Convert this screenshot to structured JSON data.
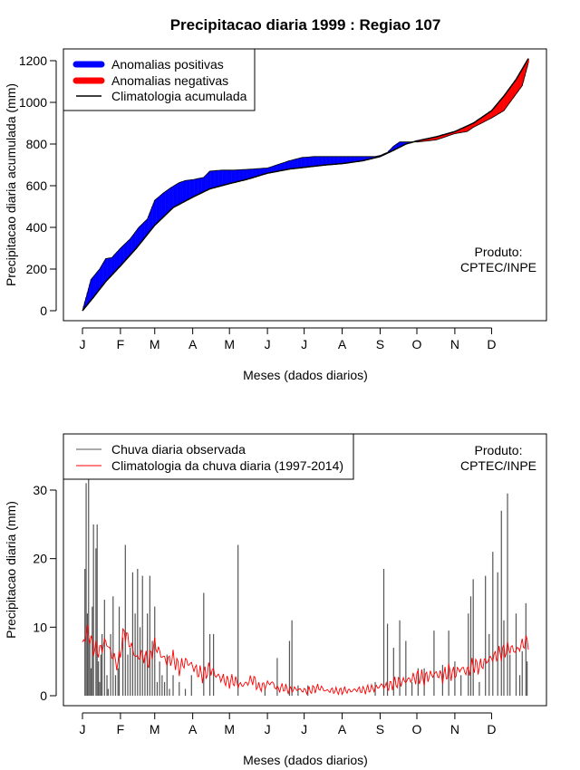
{
  "chart_data": [
    {
      "type": "area",
      "title": "Precipitacao diaria 1999 : Regiao 107",
      "xlabel": "Meses (dados diarios)",
      "ylabel": "Precipitacao diaria acumulada (mm)",
      "xlim": [
        1,
        365
      ],
      "ylim": [
        0,
        1200
      ],
      "yticks": [
        0,
        200,
        400,
        600,
        800,
        1000,
        1200
      ],
      "month_labels": [
        "J",
        "F",
        "M",
        "A",
        "M",
        "J",
        "J",
        "A",
        "S",
        "O",
        "N",
        "D"
      ],
      "month_days": [
        1,
        32,
        60,
        91,
        121,
        152,
        182,
        213,
        244,
        274,
        305,
        335
      ],
      "legend": {
        "positive": "Anomalias positivas",
        "negative": "Anomalias negativas",
        "climatology": "Climatologia acumulada"
      },
      "annotation": [
        "Produto:",
        "CPTEC/INPE"
      ],
      "colors": {
        "positive": "#0000ff",
        "negative": "#ff0000",
        "line": "#000000"
      },
      "climatology_accumulated": {
        "day": [
          1,
          10,
          20,
          32,
          45,
          60,
          75,
          91,
          105,
          121,
          135,
          152,
          170,
          182,
          200,
          213,
          230,
          244,
          255,
          265,
          274,
          290,
          305,
          320,
          335,
          345,
          355,
          365
        ],
        "value": [
          0,
          65,
          140,
          215,
          300,
          410,
          495,
          545,
          585,
          610,
          630,
          660,
          680,
          688,
          700,
          706,
          720,
          740,
          770,
          800,
          815,
          835,
          860,
          900,
          960,
          1030,
          1110,
          1210
        ]
      },
      "observed_accumulated": {
        "day": [
          1,
          8,
          15,
          20,
          25,
          32,
          40,
          47,
          54,
          60,
          67,
          73,
          80,
          85,
          92,
          100,
          105,
          115,
          125,
          140,
          152,
          170,
          180,
          190,
          200,
          220,
          240,
          244,
          250,
          255,
          260,
          275,
          290,
          305,
          315,
          320,
          330,
          335,
          345,
          350,
          360,
          365
        ],
        "value": [
          0,
          150,
          200,
          250,
          255,
          300,
          345,
          400,
          440,
          530,
          565,
          590,
          615,
          625,
          630,
          640,
          670,
          675,
          675,
          680,
          685,
          720,
          735,
          740,
          740,
          740,
          740,
          745,
          760,
          790,
          810,
          810,
          820,
          850,
          860,
          880,
          910,
          925,
          960,
          1000,
          1080,
          1190
        ]
      }
    },
    {
      "type": "bar",
      "xlabel": "Meses (dados diarios)",
      "ylabel": "Precipitacao diaria (mm)",
      "xlim": [
        1,
        365
      ],
      "ylim": [
        0,
        35
      ],
      "yticks": [
        0,
        10,
        20,
        30
      ],
      "month_labels": [
        "J",
        "F",
        "M",
        "A",
        "M",
        "J",
        "J",
        "A",
        "S",
        "O",
        "N",
        "D"
      ],
      "month_days": [
        1,
        32,
        60,
        91,
        121,
        152,
        182,
        213,
        244,
        274,
        305,
        335
      ],
      "legend": {
        "observed": "Chuva diaria observada",
        "climatology": "Climatologia da chuva diaria (1997-2014)"
      },
      "annotation": [
        "Produto:",
        "CPTEC/INPE"
      ],
      "colors": {
        "observed": "#555555",
        "climatology": "#ff0000"
      },
      "observed_daily_spikes": {
        "day": [
          3,
          4,
          5,
          6,
          7,
          8,
          9,
          10,
          12,
          13,
          14,
          15,
          16,
          17,
          19,
          21,
          22,
          24,
          26,
          28,
          30,
          31,
          34,
          36,
          38,
          40,
          42,
          44,
          46,
          48,
          50,
          52,
          54,
          56,
          58,
          60,
          62,
          64,
          66,
          68,
          70,
          72,
          75,
          80,
          85,
          90,
          100,
          105,
          108,
          128,
          150,
          160,
          170,
          172,
          177,
          185,
          240,
          247,
          250,
          255,
          260,
          265,
          270,
          275,
          280,
          288,
          295,
          300,
          305,
          310,
          316,
          318,
          320,
          325,
          330,
          333,
          336,
          340,
          343,
          345,
          348,
          350,
          355,
          358,
          360,
          363,
          364
        ],
        "value": [
          18.5,
          31,
          12,
          34,
          8,
          4,
          13,
          25,
          21.5,
          25,
          5,
          2,
          6,
          9,
          14,
          3,
          1,
          9,
          14.5,
          3,
          4,
          13,
          8.5,
          22,
          6,
          7,
          18,
          12,
          18.5,
          10,
          17.5,
          6,
          12,
          17.5,
          8,
          13,
          2,
          5,
          3,
          2,
          6,
          1,
          3,
          2,
          1,
          3,
          15,
          9,
          9,
          22,
          1,
          5.5,
          8,
          11,
          1.5,
          1.5,
          2,
          18.5,
          10.5,
          7,
          11,
          8,
          2,
          4,
          4,
          9.5,
          4.5,
          9.5,
          5,
          3,
          12,
          14.5,
          17,
          2,
          17.5,
          9,
          21,
          18,
          27,
          11,
          29.5,
          6,
          12,
          3,
          6.5,
          13.5,
          5
        ]
      },
      "climatology_daily": {
        "day": [
          1,
          5,
          10,
          15,
          20,
          25,
          30,
          35,
          40,
          45,
          50,
          55,
          60,
          65,
          70,
          75,
          80,
          85,
          90,
          95,
          100,
          105,
          110,
          115,
          120,
          125,
          130,
          135,
          140,
          145,
          150,
          155,
          160,
          165,
          170,
          175,
          180,
          185,
          190,
          195,
          200,
          205,
          210,
          215,
          220,
          225,
          230,
          235,
          240,
          245,
          250,
          255,
          260,
          265,
          270,
          275,
          280,
          285,
          290,
          295,
          300,
          305,
          310,
          315,
          320,
          325,
          330,
          335,
          340,
          345,
          350,
          355,
          360,
          365
        ],
        "value": [
          7.5,
          9.5,
          7,
          6.5,
          8,
          6,
          4.5,
          9.5,
          7.5,
          5.5,
          6,
          5,
          7.5,
          6,
          5,
          5.5,
          4,
          5,
          4.5,
          3.5,
          3,
          4,
          3,
          2.5,
          2,
          2.2,
          1.5,
          1.8,
          2.5,
          1.2,
          1.5,
          2,
          1,
          1.2,
          0.8,
          1,
          0.8,
          0.7,
          1,
          1.2,
          0.7,
          0.8,
          0.6,
          0.8,
          0.7,
          0.9,
          0.8,
          1,
          1.1,
          1.5,
          1.3,
          1.8,
          2,
          2.2,
          2.5,
          2.8,
          2.5,
          3,
          3.2,
          2.8,
          3.5,
          3.2,
          4,
          3.5,
          4.5,
          4.2,
          5,
          5.5,
          6,
          6.5,
          7,
          6.5,
          7.5,
          8
        ]
      }
    }
  ]
}
